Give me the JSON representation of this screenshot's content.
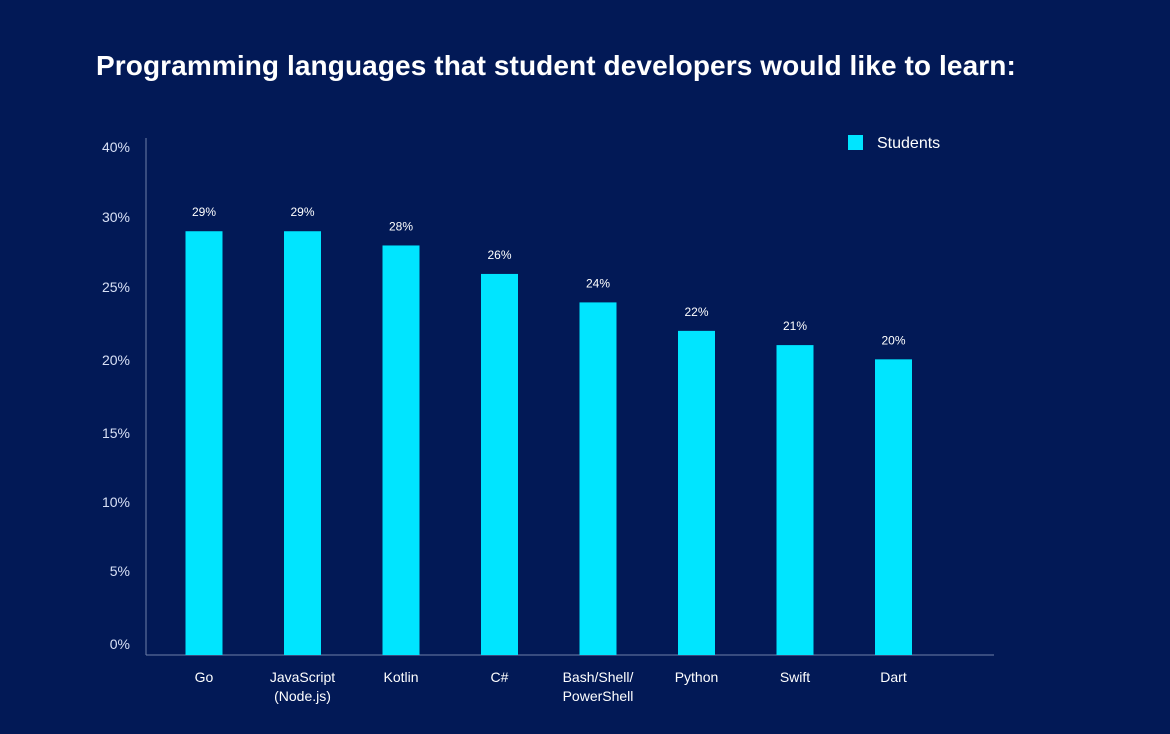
{
  "colors": {
    "background": "#021956",
    "bar": "#00E5FF",
    "axis": "#6f7fa8",
    "text": "#ffffff"
  },
  "chart_data": {
    "type": "bar",
    "title": "Programming languages that student developers would like to learn:",
    "xlabel": "",
    "ylabel": "",
    "ylim": [
      0,
      40
    ],
    "yticks": [
      0,
      5,
      10,
      15,
      20,
      25,
      30,
      40
    ],
    "ytick_labels": [
      "0%",
      "5%",
      "10%",
      "15%",
      "20%",
      "25%",
      "30%",
      "40%"
    ],
    "categories": [
      [
        "Go"
      ],
      [
        "JavaScript",
        "(Node.js)"
      ],
      [
        "Kotlin"
      ],
      [
        "C#"
      ],
      [
        "Bash/Shell/",
        "PowerShell"
      ],
      [
        "Python"
      ],
      [
        "Swift"
      ],
      [
        "Dart"
      ]
    ],
    "series": [
      {
        "name": "Students",
        "values": [
          29,
          29,
          28,
          26,
          24,
          22,
          21,
          20
        ],
        "labels": [
          "29%",
          "29%",
          "28%",
          "26%",
          "24%",
          "22%",
          "21%",
          "20%"
        ]
      }
    ],
    "legend": "top-right",
    "grid": false
  }
}
